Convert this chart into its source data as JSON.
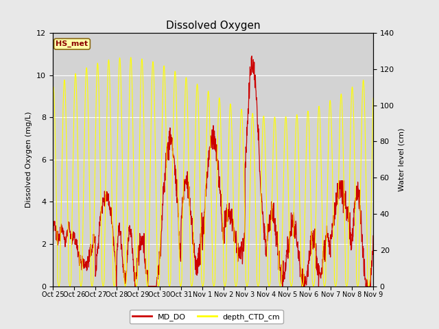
{
  "title": "Dissolved Oxygen",
  "ylabel_left": "Dissolved Oxygen (mg/L)",
  "ylabel_right": "Water level (cm)",
  "xlabel_ticks": [
    "Oct 25",
    "Oct 26",
    "Oct 27",
    "Oct 28",
    "Oct 29",
    "Oct 30",
    "Oct 31",
    "Nov 1",
    "Nov 2",
    "Nov 3",
    "Nov 4",
    "Nov 5",
    "Nov 6",
    "Nov 7",
    "Nov 8",
    "Nov 9"
  ],
  "ylim_left": [
    0,
    12
  ],
  "ylim_right": [
    0,
    140
  ],
  "fig_facecolor": "#e8e8e8",
  "axes_facecolor": "#d3d3d3",
  "grid_color": "#ffffff",
  "annotation_text": "HS_met",
  "annotation_facecolor": "#ffffaa",
  "annotation_edgecolor": "#8B6914",
  "annotation_textcolor": "#8B0000",
  "line_DO_color": "#cc0000",
  "line_depth_color": "#ffff00",
  "legend_DO_label": "MD_DO",
  "legend_depth_label": "depth_CTD_cm",
  "title_fontsize": 11,
  "label_fontsize": 8,
  "tick_fontsize": 8
}
